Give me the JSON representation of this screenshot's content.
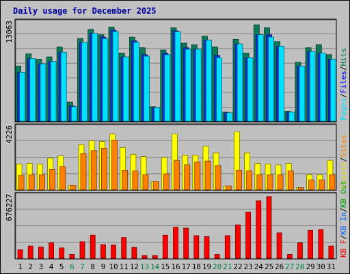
{
  "title": "Daily usage for December 2025",
  "chart_data": [
    {
      "type": "bar",
      "panel": "top",
      "ymax_label": "13063",
      "ylim": [
        0,
        13063
      ],
      "legend": [
        {
          "text": "Pages",
          "color": "#00e0ff"
        },
        {
          "text": "/",
          "color": "#000000"
        },
        {
          "text": "Files",
          "color": "#0000ff"
        },
        {
          "text": "/",
          "color": "#000000"
        },
        {
          "text": "Hits",
          "color": "#007850"
        }
      ],
      "series": [
        {
          "name": "Hits",
          "color": "#0a7a5a",
          "values": [
            7200,
            8800,
            8100,
            8400,
            9700,
            2500,
            10800,
            12000,
            11300,
            12300,
            8900,
            11000,
            9600,
            1900,
            9300,
            12200,
            10200,
            10000,
            11100,
            9700,
            1200,
            10700,
            8900,
            12600,
            12200,
            10400,
            1300,
            7700,
            9600,
            10000,
            8700
          ]
        },
        {
          "name": "Files",
          "color": "#1030e0",
          "values": [
            6400,
            8200,
            7500,
            7800,
            9000,
            2000,
            10300,
            11500,
            11000,
            11900,
            8400,
            10500,
            8700,
            1800,
            8900,
            11800,
            9600,
            9400,
            10600,
            8600,
            1100,
            10100,
            8300,
            11300,
            11300,
            9800,
            1200,
            7200,
            9100,
            8900,
            8100
          ]
        },
        {
          "name": "Pages",
          "color": "#00e0ff",
          "values": [
            6400,
            8200,
            7500,
            7800,
            9000,
            1900,
            10300,
            11500,
            10800,
            11700,
            8400,
            10300,
            8500,
            1800,
            8700,
            11700,
            9400,
            9400,
            10600,
            8300,
            1100,
            10100,
            8300,
            11300,
            11000,
            9800,
            1200,
            7200,
            9100,
            8900,
            8100
          ]
        }
      ]
    },
    {
      "type": "bar",
      "panel": "middle",
      "ymax_label": "4226",
      "ylim": [
        0,
        4226
      ],
      "legend": [
        {
          "text": "Visits",
          "color": "#e0e000"
        },
        {
          "text": "/",
          "color": "#000000"
        },
        {
          "text": "Sites",
          "color": "#ff8000"
        }
      ],
      "series": [
        {
          "name": "Visits",
          "color": "#ffff00",
          "values": [
            1700,
            1750,
            1700,
            2100,
            2250,
            300,
            3000,
            3250,
            3200,
            3700,
            2800,
            2350,
            2200,
            550,
            2150,
            3700,
            2300,
            2300,
            2900,
            2450,
            250,
            3850,
            2450,
            1750,
            1700,
            1650,
            1750,
            150,
            1000,
            1000,
            1950
          ]
        },
        {
          "name": "Sites",
          "color": "#ff8000",
          "values": [
            950,
            1000,
            1000,
            1350,
            1550,
            300,
            2400,
            2600,
            2750,
            3300,
            1300,
            1250,
            1000,
            550,
            1050,
            1950,
            1650,
            1850,
            1900,
            1600,
            250,
            1300,
            1250,
            1000,
            1000,
            1000,
            1250,
            150,
            650,
            650,
            1000
          ]
        }
      ]
    },
    {
      "type": "bar",
      "panel": "bottom",
      "ymax_label": "676227",
      "ylim": [
        0,
        676227
      ],
      "legend": [
        {
          "text": "KB F",
          "color": "#ff0000"
        },
        {
          "text": "/",
          "color": "#000000"
        },
        {
          "text": "KB In",
          "color": "#0060ff"
        },
        {
          "text": "/",
          "color": "#000000"
        },
        {
          "text": "KB Out",
          "color": "#00a000"
        }
      ],
      "series": [
        {
          "name": "KB F",
          "color": "#ff0000",
          "values": [
            90000,
            130000,
            120000,
            165000,
            110000,
            40000,
            175000,
            245000,
            145000,
            140000,
            220000,
            115000,
            30000,
            30000,
            245000,
            330000,
            320000,
            240000,
            230000,
            40000,
            240000,
            355000,
            490000,
            610000,
            655000,
            270000,
            40000,
            165000,
            295000,
            305000,
            130000
          ]
        }
      ]
    }
  ],
  "x_labels": [
    "1",
    "2",
    "3",
    "4",
    "5",
    "6",
    "7",
    "8",
    "9",
    "10",
    "11",
    "12",
    "13",
    "14",
    "15",
    "16",
    "17",
    "18",
    "19",
    "20",
    "21",
    "22",
    "23",
    "24",
    "25",
    "26",
    "27",
    "28",
    "29",
    "30",
    "31"
  ],
  "weekend_days": [
    6,
    7,
    13,
    14,
    20,
    21,
    27,
    28
  ],
  "colors": {
    "weekday": "#000000",
    "weekend": "#008040",
    "panel_bg": "#c0c0c0",
    "grid": "#808080"
  }
}
